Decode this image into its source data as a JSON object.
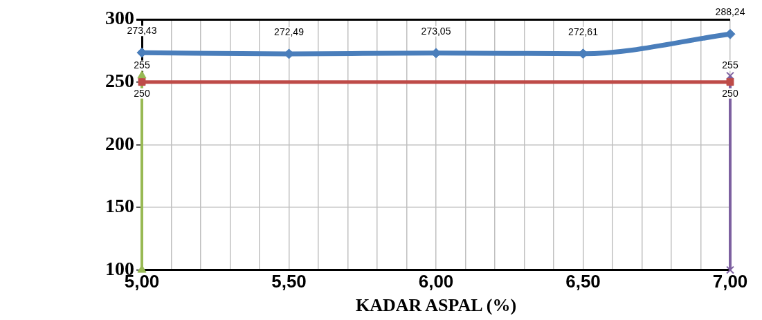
{
  "chart_data": {
    "type": "line",
    "xlabel": "KADAR ASPAL (%)",
    "xlim": [
      5,
      7
    ],
    "xticks": [
      {
        "value": 5,
        "label": "5,00"
      },
      {
        "value": 5.1,
        "label": null
      },
      {
        "value": 5.2,
        "label": null
      },
      {
        "value": 5.3,
        "label": null
      },
      {
        "value": 5.4,
        "label": null
      },
      {
        "value": 5.5,
        "label": "5,50"
      },
      {
        "value": 5.6,
        "label": null
      },
      {
        "value": 5.7,
        "label": null
      },
      {
        "value": 5.8,
        "label": null
      },
      {
        "value": 5.9,
        "label": null
      },
      {
        "value": 6,
        "label": "6,00"
      },
      {
        "value": 6.1,
        "label": null
      },
      {
        "value": 6.2,
        "label": null
      },
      {
        "value": 6.3,
        "label": null
      },
      {
        "value": 6.4,
        "label": null
      },
      {
        "value": 6.5,
        "label": "6,50"
      },
      {
        "value": 6.6,
        "label": null
      },
      {
        "value": 6.7,
        "label": null
      },
      {
        "value": 6.8,
        "label": null
      },
      {
        "value": 6.9,
        "label": null
      },
      {
        "value": 7,
        "label": "7,00"
      }
    ],
    "ylim": [
      100,
      300
    ],
    "yticks": [
      100,
      150,
      200,
      250,
      300
    ],
    "grid": true,
    "legend": false,
    "series": [
      {
        "color": "#4a7ebb",
        "marker": "diamond",
        "x": [
          5,
          5.5,
          6,
          6.5,
          7
        ],
        "values": [
          273.43,
          272.49,
          273.05,
          272.61,
          288.24
        ],
        "value_labels": [
          "273,43",
          "272,49",
          "273,05",
          "272,61",
          "288,24"
        ]
      },
      {
        "color": "#be4b48",
        "marker": "square",
        "x": [
          5,
          7
        ],
        "values": [
          250,
          250
        ],
        "value_labels": [
          "250",
          "250"
        ]
      },
      {
        "color": "#98b954",
        "marker": "triangle",
        "x": [
          5,
          5
        ],
        "values": [
          100,
          255
        ],
        "value_labels": [
          null,
          "255"
        ]
      },
      {
        "color": "#7d60a0",
        "marker": "cross",
        "x": [
          7,
          7
        ],
        "values": [
          100,
          255
        ],
        "value_labels": [
          null,
          "255"
        ]
      }
    ]
  }
}
